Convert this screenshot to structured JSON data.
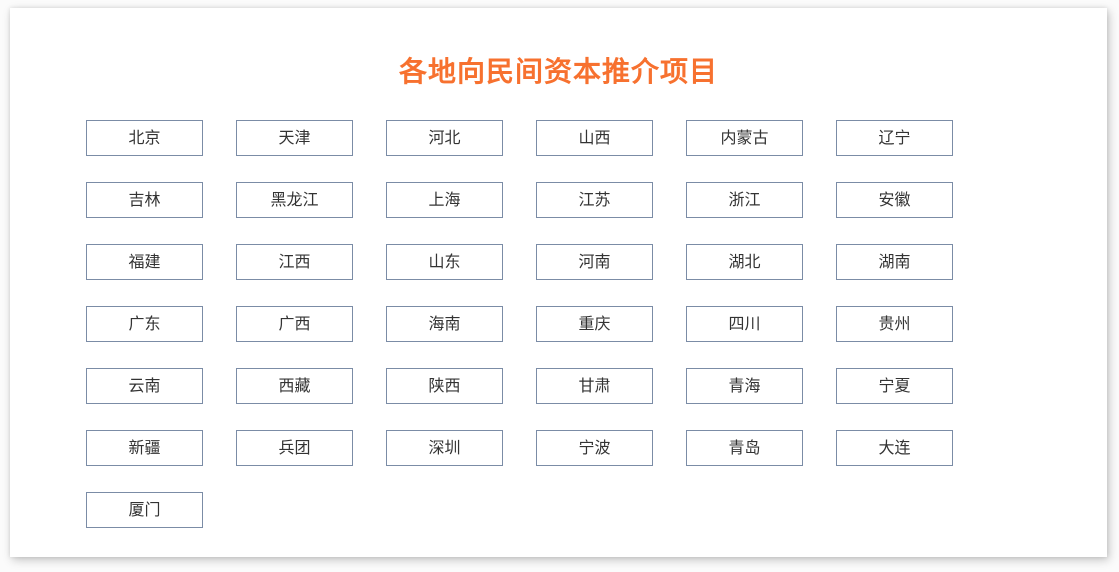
{
  "page": {
    "title": "各地向民间资本推介项目"
  },
  "regions": [
    "北京",
    "天津",
    "河北",
    "山西",
    "内蒙古",
    "辽宁",
    "吉林",
    "黑龙江",
    "上海",
    "江苏",
    "浙江",
    "安徽",
    "福建",
    "江西",
    "山东",
    "河南",
    "湖北",
    "湖南",
    "广东",
    "广西",
    "海南",
    "重庆",
    "四川",
    "贵州",
    "云南",
    "西藏",
    "陕西",
    "甘肃",
    "青海",
    "宁夏",
    "新疆",
    "兵团",
    "深圳",
    "宁波",
    "青岛",
    "大连",
    "厦门"
  ],
  "colors": {
    "title_accent": "#f7712f",
    "button_border": "#7b8ca6",
    "button_shadow_border": "#b9c8da",
    "button_text": "#333333",
    "card_background": "#ffffff",
    "page_background": "#fbfbfb"
  }
}
